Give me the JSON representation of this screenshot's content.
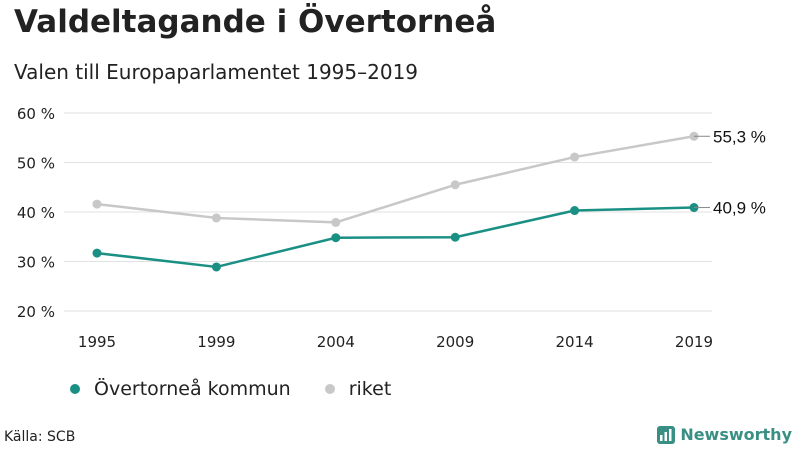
{
  "title": "Valdeltagande i Övertorneå",
  "subtitle": "Valen till Europaparlamentet 1995–2019",
  "source": "Källa: SCB",
  "brand": "Newsworthy",
  "colors": {
    "primary": "#1a9084",
    "secondary": "#c8c8c8",
    "grid": "#e1e1e1",
    "brand": "#3a8f84"
  },
  "chart_data": {
    "type": "line",
    "title": "Valdeltagande i Övertorneå",
    "subtitle": "Valen till Europaparlamentet 1995–2019",
    "categories": [
      "1995",
      "1999",
      "2004",
      "2009",
      "2014",
      "2019"
    ],
    "y_ticks": [
      20,
      30,
      40,
      50,
      60
    ],
    "y_tick_labels": [
      "20 %",
      "30 %",
      "40 %",
      "50 %",
      "60 %"
    ],
    "ylim": [
      20,
      60
    ],
    "xlabel": "",
    "ylabel": "",
    "grid": true,
    "legend_position": "bottom",
    "series": [
      {
        "name": "riket",
        "color": "#c8c8c8",
        "values": [
          41.6,
          38.8,
          37.9,
          45.5,
          51.1,
          55.3
        ],
        "end_label": "55,3 %"
      },
      {
        "name": "Övertorneå kommun",
        "color": "#1a9084",
        "values": [
          31.7,
          28.9,
          34.8,
          34.9,
          40.3,
          40.9
        ],
        "end_label": "40,9 %"
      }
    ]
  }
}
